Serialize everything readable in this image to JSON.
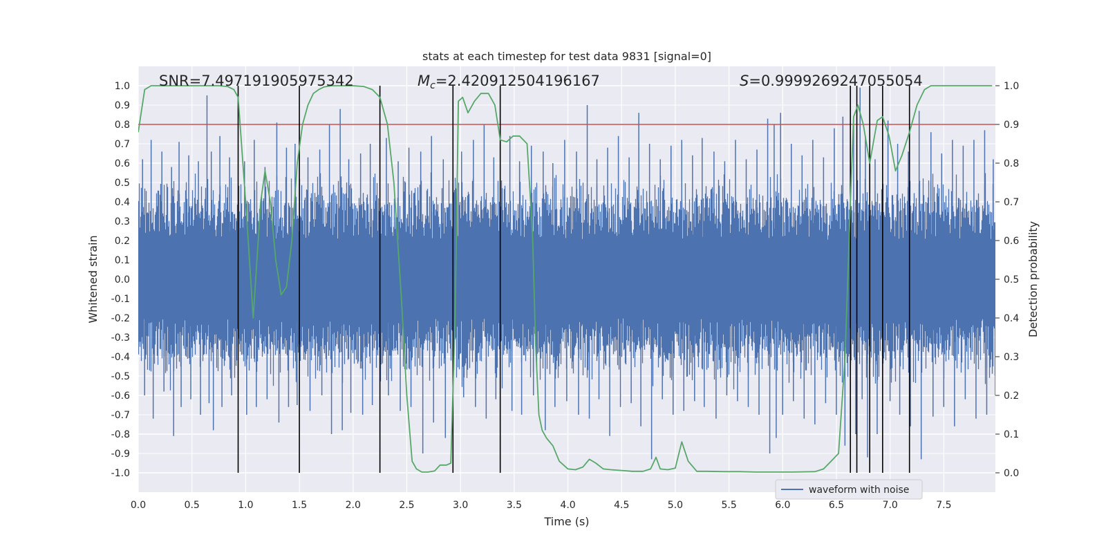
{
  "chart_data": {
    "type": "line",
    "title": "stats at each timestep for test data 9831 [signal=0]",
    "xlabel": "Time (s)",
    "ylabel": "Whitened strain",
    "y2label": "Detection probability",
    "xlim": [
      0.0,
      7.98
    ],
    "ylim": [
      -1.1,
      1.1
    ],
    "y2lim": [
      -0.05,
      1.05
    ],
    "x_ticks": [
      "0.0",
      "0.5",
      "1.0",
      "1.5",
      "2.0",
      "2.5",
      "3.0",
      "3.5",
      "4.0",
      "4.5",
      "5.0",
      "5.5",
      "6.0",
      "6.5",
      "7.0",
      "7.5"
    ],
    "y_ticks": [
      "1.0",
      "0.9",
      "0.8",
      "0.7",
      "0.6",
      "0.5",
      "0.4",
      "0.3",
      "0.2",
      "0.1",
      "0.0",
      "-0.1",
      "-0.2",
      "-0.3",
      "-0.4",
      "-0.5",
      "-0.6",
      "-0.7",
      "-0.8",
      "-0.9",
      "-1.0"
    ],
    "y2_ticks": [
      "1.0",
      "0.9",
      "0.8",
      "0.7",
      "0.6",
      "0.5",
      "0.4",
      "0.3",
      "0.2",
      "0.1",
      "0.0"
    ],
    "grid": true,
    "legend": {
      "position": "lower-right",
      "entries": [
        "waveform with noise"
      ]
    },
    "annotations": {
      "snr": "SNR=7.497191905975342",
      "mc_symbol": "M",
      "mc_sub": "c",
      "mc_value": "=2.420912504196167",
      "s_symbol": "S",
      "s_value": "=0.9999269247055054"
    },
    "threshold": {
      "value": 0.8,
      "axis": "left",
      "color": "#c44e52"
    },
    "vlines": [
      0.93,
      1.5,
      2.25,
      2.93,
      3.37,
      6.63,
      6.69,
      6.81,
      6.93,
      7.18
    ],
    "series": [
      {
        "name": "waveform with noise",
        "color": "#4c72b0",
        "axis": "left",
        "envelope_note": "dense noise, typical amplitude ~0.4-0.6, peaks to ~0.95",
        "peaks_x": [
          0.04,
          0.12,
          0.22,
          0.31,
          0.38,
          0.47,
          0.56,
          0.64,
          0.68,
          0.76,
          0.85,
          0.99,
          1.08,
          1.18,
          1.29,
          1.38,
          1.46,
          1.58,
          1.69,
          1.78,
          1.88,
          1.96,
          2.07,
          2.16,
          2.31,
          2.42,
          2.52,
          2.63,
          2.73,
          2.84,
          3.01,
          3.12,
          3.22,
          3.31,
          3.46,
          3.55,
          3.66,
          3.77,
          3.86,
          3.97,
          4.08,
          4.18,
          4.27,
          4.37,
          4.47,
          4.57,
          4.66,
          4.76,
          4.86,
          4.96,
          5.06,
          5.16,
          5.25,
          5.36,
          5.46,
          5.56,
          5.66,
          5.76,
          5.86,
          5.92,
          5.98,
          6.08,
          6.18,
          6.28,
          6.38,
          6.48,
          6.56,
          6.66,
          6.72,
          6.77,
          6.86,
          6.98,
          7.07,
          7.17,
          7.27,
          7.38,
          7.48,
          7.58,
          7.68,
          7.78,
          7.88,
          7.96
        ],
        "peaks_top": [
          0.62,
          0.72,
          0.66,
          0.58,
          0.71,
          0.64,
          0.61,
          0.95,
          0.66,
          0.74,
          0.63,
          0.61,
          0.72,
          0.58,
          0.81,
          0.68,
          0.7,
          0.63,
          0.67,
          0.8,
          0.88,
          0.62,
          0.65,
          0.7,
          0.73,
          0.61,
          0.68,
          0.66,
          0.74,
          0.62,
          0.66,
          0.72,
          0.8,
          0.63,
          0.74,
          0.61,
          0.69,
          0.66,
          0.6,
          0.72,
          0.66,
          0.9,
          0.62,
          0.68,
          0.74,
          0.63,
          0.86,
          0.7,
          0.62,
          0.69,
          0.72,
          0.64,
          0.73,
          0.66,
          0.61,
          0.72,
          0.62,
          0.67,
          0.83,
          0.8,
          0.86,
          0.7,
          0.64,
          0.72,
          0.63,
          0.78,
          0.84,
          0.82,
          0.99,
          0.74,
          0.62,
          0.82,
          0.7,
          0.66,
          0.87,
          0.76,
          0.65,
          0.72,
          0.69,
          0.72,
          0.77,
          0.62
        ],
        "peaks_bottom": [
          -0.6,
          -0.72,
          -0.58,
          -0.81,
          -0.66,
          -0.62,
          -0.7,
          -0.64,
          -0.78,
          -0.66,
          -0.6,
          -0.7,
          -0.66,
          -0.62,
          -0.74,
          -0.66,
          -0.65,
          -0.68,
          -0.6,
          -0.8,
          -0.78,
          -0.69,
          -0.7,
          -0.65,
          -0.6,
          -0.68,
          -0.66,
          -0.9,
          -0.74,
          -0.82,
          -0.61,
          -0.66,
          -0.72,
          -0.62,
          -0.68,
          -0.7,
          -0.6,
          -0.78,
          -0.66,
          -0.63,
          -0.7,
          -0.72,
          -0.62,
          -0.81,
          -0.66,
          -0.64,
          -0.76,
          -0.93,
          -0.62,
          -0.7,
          -0.68,
          -0.63,
          -0.66,
          -0.72,
          -0.6,
          -0.63,
          -0.66,
          -0.7,
          -0.9,
          -0.82,
          -0.7,
          -0.63,
          -0.72,
          -0.75,
          -0.64,
          -0.7,
          -0.86,
          -0.8,
          -0.62,
          -0.92,
          -0.8,
          -0.63,
          -0.7,
          -0.76,
          -0.93,
          -0.71,
          -0.66,
          -0.76,
          -0.62,
          -0.72,
          -0.7,
          -0.6
        ]
      },
      {
        "name": "",
        "color": "#55a868",
        "axis": "right",
        "x": [
          0.0,
          0.06,
          0.12,
          0.25,
          0.45,
          0.62,
          0.75,
          0.83,
          0.89,
          0.93,
          1.0,
          1.07,
          1.14,
          1.18,
          1.23,
          1.28,
          1.33,
          1.38,
          1.43,
          1.48,
          1.53,
          1.58,
          1.63,
          1.68,
          1.73,
          1.8,
          1.9,
          2.0,
          2.1,
          2.18,
          2.25,
          2.32,
          2.38,
          2.45,
          2.5,
          2.55,
          2.59,
          2.64,
          2.7,
          2.76,
          2.81,
          2.87,
          2.91,
          2.95,
          2.98,
          3.02,
          3.07,
          3.13,
          3.19,
          3.26,
          3.32,
          3.37,
          3.43,
          3.49,
          3.55,
          3.62,
          3.67,
          3.7,
          3.73,
          3.76,
          3.8,
          3.86,
          3.92,
          4.0,
          4.07,
          4.14,
          4.2,
          4.26,
          4.33,
          4.4,
          4.5,
          4.6,
          4.7,
          4.77,
          4.82,
          4.86,
          4.93,
          5.0,
          5.06,
          5.12,
          5.2,
          5.3,
          5.45,
          5.6,
          5.75,
          5.9,
          6.1,
          6.3,
          6.38,
          6.45,
          6.52,
          6.58,
          6.63,
          6.66,
          6.7,
          6.75,
          6.81,
          6.88,
          6.93,
          6.99,
          7.05,
          7.11,
          7.18,
          7.25,
          7.32,
          7.38,
          7.5,
          7.7,
          7.85,
          7.95
        ],
        "y": [
          0.88,
          0.99,
          1.0,
          1.0,
          1.0,
          1.0,
          1.0,
          0.998,
          0.99,
          0.97,
          0.7,
          0.4,
          0.7,
          0.78,
          0.7,
          0.55,
          0.46,
          0.48,
          0.6,
          0.8,
          0.9,
          0.95,
          0.98,
          0.99,
          0.997,
          1.0,
          1.0,
          1.0,
          0.998,
          0.99,
          0.97,
          0.9,
          0.75,
          0.45,
          0.2,
          0.03,
          0.01,
          0.002,
          0.002,
          0.005,
          0.02,
          0.02,
          0.025,
          0.4,
          0.96,
          0.97,
          0.93,
          0.96,
          0.98,
          0.98,
          0.95,
          0.86,
          0.855,
          0.87,
          0.87,
          0.85,
          0.62,
          0.33,
          0.15,
          0.11,
          0.09,
          0.07,
          0.03,
          0.01,
          0.008,
          0.015,
          0.035,
          0.025,
          0.01,
          0.008,
          0.006,
          0.004,
          0.004,
          0.01,
          0.04,
          0.01,
          0.008,
          0.012,
          0.08,
          0.03,
          0.004,
          0.004,
          0.003,
          0.003,
          0.002,
          0.002,
          0.002,
          0.003,
          0.01,
          0.03,
          0.05,
          0.3,
          0.7,
          0.92,
          0.95,
          0.9,
          0.8,
          0.91,
          0.92,
          0.87,
          0.78,
          0.82,
          0.88,
          0.95,
          0.99,
          1.0,
          1.0,
          1.0,
          1.0,
          1.0
        ]
      }
    ]
  }
}
